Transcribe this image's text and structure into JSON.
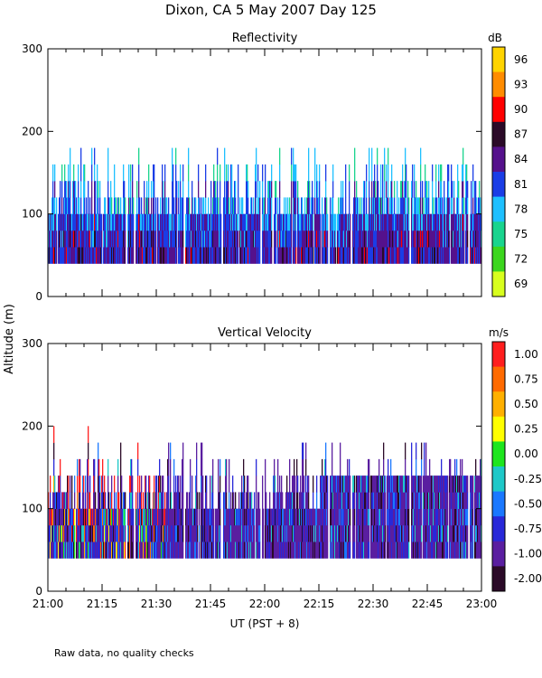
{
  "figure": {
    "title": "Dixon, CA  5 May 2007  Day 125",
    "ylabel": "Altitude (m)",
    "xlabel": "UT  (PST + 8)",
    "footnote": "Raw data, no quality checks"
  },
  "chart_data": [
    {
      "type": "heatmap",
      "title": "Reflectivity",
      "xlabel": "UT  (PST + 8)",
      "ylabel": "Altitude (m)",
      "x_ticks": [
        "21:00",
        "21:15",
        "21:30",
        "21:45",
        "22:00",
        "22:15",
        "22:30",
        "22:45",
        "23:00"
      ],
      "y_ticks": [
        "0",
        "100",
        "200",
        "300"
      ],
      "xlim_minutes": [
        0,
        120
      ],
      "ylim": [
        0,
        300
      ],
      "data_range_m": [
        40,
        200
      ],
      "colorbar": {
        "unit": "dB",
        "labels": [
          "96",
          "93",
          "90",
          "87",
          "84",
          "81",
          "78",
          "75",
          "72",
          "69"
        ],
        "colors": [
          "#ffd400",
          "#ff8c00",
          "#ff0000",
          "#2b0a28",
          "#55118c",
          "#1a3de6",
          "#1ec0ff",
          "#19d48e",
          "#3cd61e",
          "#d8ff1e"
        ]
      },
      "cells_per_row": 480,
      "gap_columns": [
        86,
        95,
        150,
        192,
        235,
        310,
        335,
        400,
        465
      ],
      "levels": [
        "#ffd400",
        "#ff8c00",
        "#ff0000",
        "#2b0a28",
        "#55118c",
        "#1a3de6",
        "#1ec0ff",
        "#19d48e",
        "#3cd61e",
        "#d8ff1e"
      ]
    },
    {
      "type": "heatmap",
      "title": "Vertical Velocity",
      "xlabel": "UT  (PST + 8)",
      "ylabel": "Altitude (m)",
      "x_ticks": [
        "21:00",
        "21:15",
        "21:30",
        "21:45",
        "22:00",
        "22:15",
        "22:30",
        "22:45",
        "23:00"
      ],
      "y_ticks": [
        "0",
        "100",
        "200",
        "300"
      ],
      "xlim_minutes": [
        0,
        120
      ],
      "ylim": [
        0,
        300
      ],
      "data_range_m": [
        40,
        200
      ],
      "colorbar": {
        "unit": "m/s",
        "labels": [
          "1.00",
          "0.75",
          "0.50",
          "0.25",
          "0.00",
          "-0.25",
          "-0.50",
          "-0.75",
          "-1.00",
          "-2.00"
        ],
        "colors": [
          "#ff1e1e",
          "#ff6a00",
          "#ffb000",
          "#ffff00",
          "#1ee61e",
          "#1ec8c8",
          "#1a78ff",
          "#2828d8",
          "#5a1ea0",
          "#2b0a28"
        ]
      },
      "cells_per_row": 480,
      "gap_columns": [
        86,
        95,
        150,
        192,
        235,
        310,
        335,
        400,
        465
      ],
      "levels": [
        "#ff1e1e",
        "#ff6a00",
        "#ffb000",
        "#ffff00",
        "#1ee61e",
        "#1ec8c8",
        "#1a78ff",
        "#2828d8",
        "#5a1ea0",
        "#2b0a28"
      ]
    }
  ]
}
